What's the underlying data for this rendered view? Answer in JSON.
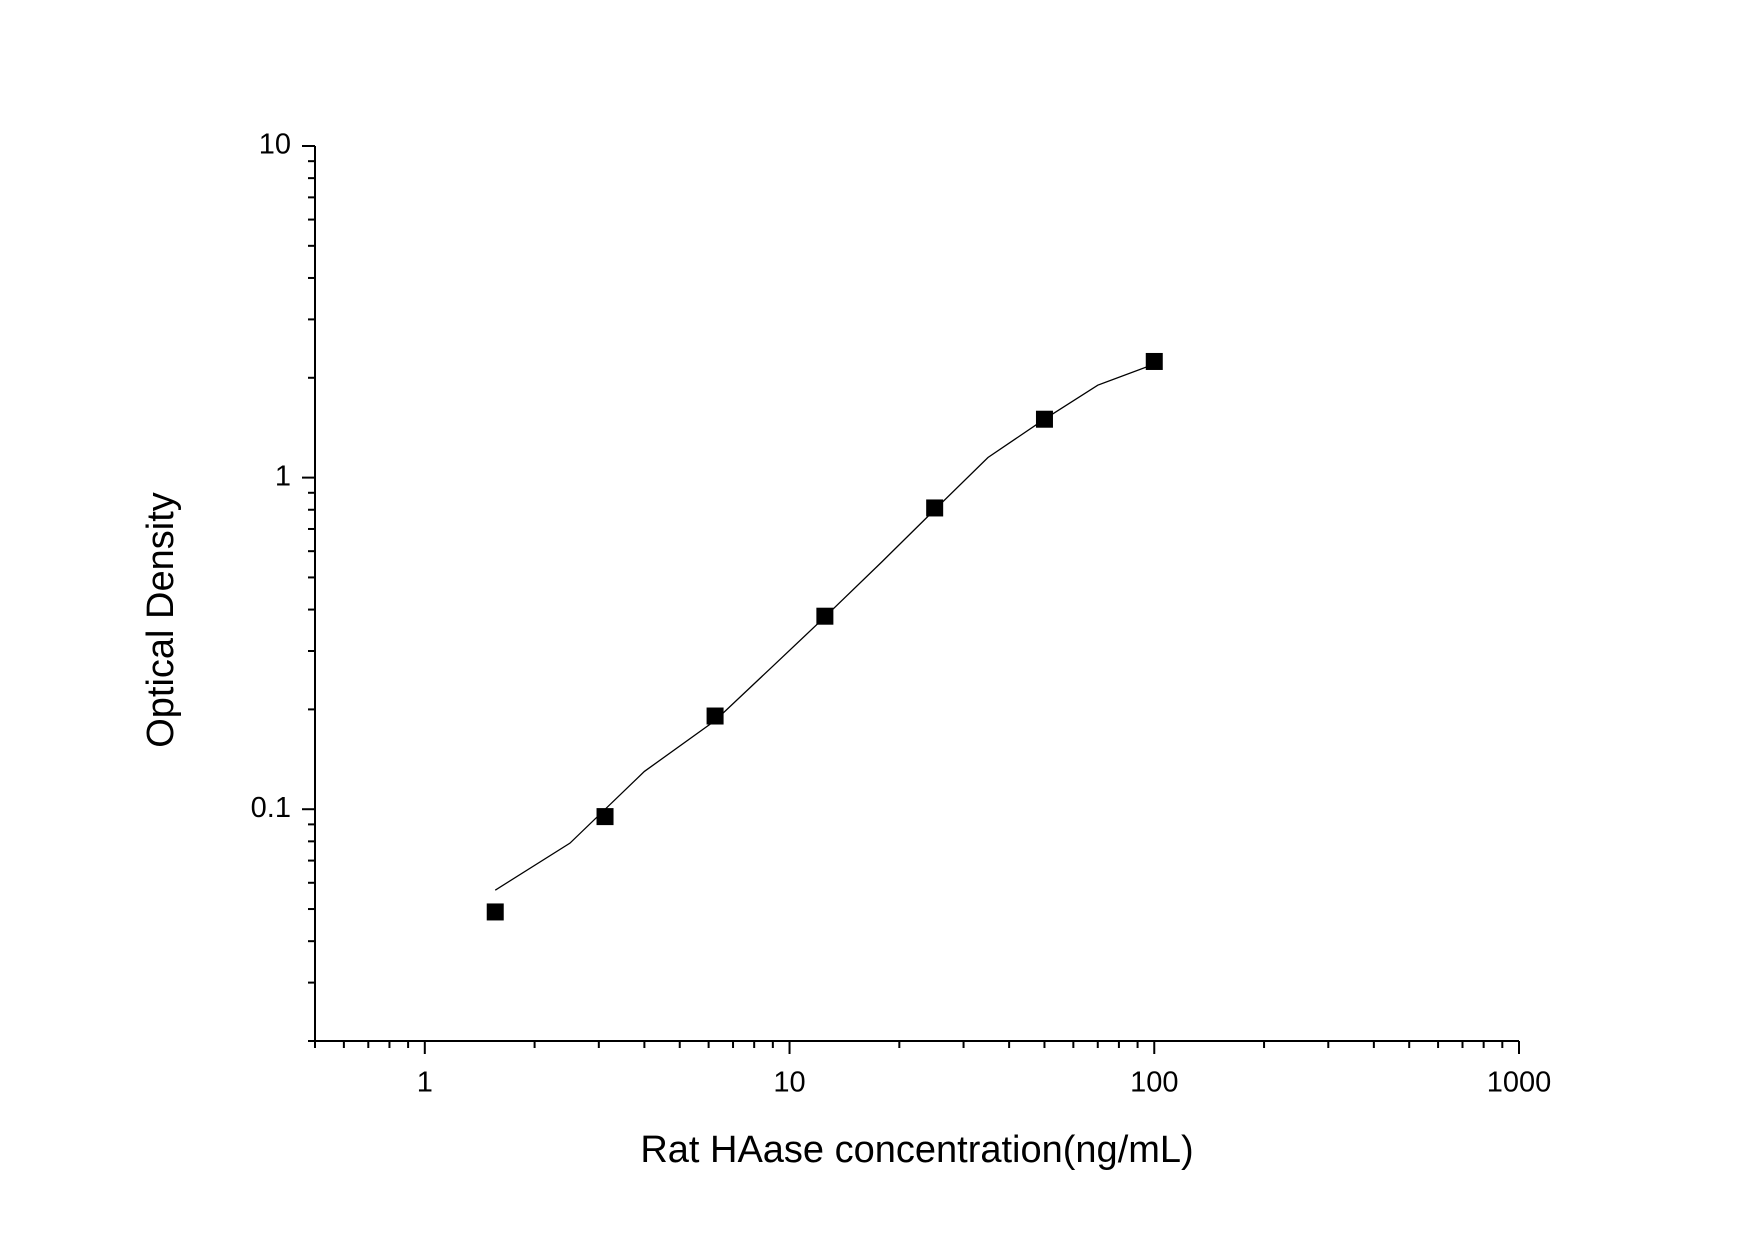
{
  "chart_data": {
    "type": "scatter",
    "x_label": "Rat HAase concentration(ng/mL)",
    "y_label": "Optical Density",
    "x_scale": "log",
    "y_scale": "log",
    "xlim": [
      0.5,
      1000
    ],
    "ylim": [
      0.02,
      10
    ],
    "xticks": [
      1,
      10,
      100,
      1000
    ],
    "yticks": [
      0.1,
      1,
      10
    ],
    "xminorticks": [
      0.5,
      0.6,
      0.7,
      0.8,
      0.9,
      2,
      3,
      4,
      5,
      6,
      7,
      8,
      9,
      20,
      30,
      40,
      50,
      60,
      70,
      80,
      90,
      200,
      300,
      400,
      500,
      600,
      700,
      800,
      900
    ],
    "yminorticks": [
      0.02,
      0.03,
      0.04,
      0.05,
      0.06,
      0.07,
      0.08,
      0.09,
      0.2,
      0.3,
      0.4,
      0.5,
      0.6,
      0.7,
      0.8,
      0.9,
      2,
      3,
      4,
      5,
      6,
      7,
      8,
      9
    ],
    "series": [
      {
        "mode": "markers",
        "color": "#000000",
        "x": [
          1.56,
          3.12,
          6.25,
          12.5,
          25,
          50,
          100
        ],
        "values": [
          0.049,
          0.095,
          0.191,
          0.382,
          0.81,
          1.5,
          2.24
        ]
      },
      {
        "mode": "line",
        "color": "#000000",
        "x": [
          1.56,
          2.5,
          4,
          6.25,
          9,
          12.5,
          18,
          25,
          35,
          50,
          70,
          100
        ],
        "values": [
          0.057,
          0.079,
          0.13,
          0.185,
          0.27,
          0.38,
          0.56,
          0.8,
          1.15,
          1.5,
          1.9,
          2.2
        ]
      }
    ]
  }
}
